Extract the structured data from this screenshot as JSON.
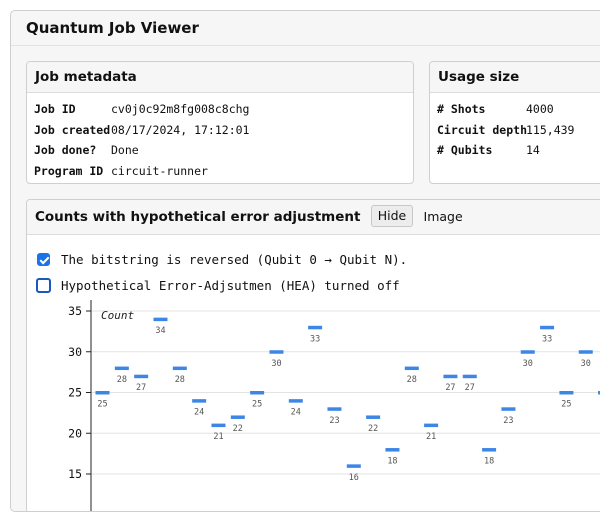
{
  "app": {
    "title": "Quantum Job Viewer"
  },
  "metadata": {
    "title": "Job metadata",
    "rows": [
      {
        "key": "Job ID",
        "value": "cv0j0c92m8fg008c8chg"
      },
      {
        "key": "Job created",
        "value": "08/17/2024, 17:12:01"
      },
      {
        "key": "Job done?",
        "value": "Done"
      },
      {
        "key": "Program ID",
        "value": "circuit-runner"
      }
    ]
  },
  "usage": {
    "title": "Usage size",
    "rows": [
      {
        "key": "# Shots",
        "value": "4000"
      },
      {
        "key": "Circuit depth",
        "value": "115,439"
      },
      {
        "key": "# Qubits",
        "value": "14"
      }
    ]
  },
  "counts": {
    "title": "Counts with hypothetical error adjustment",
    "hide_label": "Hide",
    "image_label": "Image",
    "options": [
      {
        "label": "The bitstring is reversed (Qubit 0 → Qubit N).",
        "checked": true
      },
      {
        "label": "Hypothetical Error-Adjsutmen (HEA) turned off",
        "checked": false
      }
    ]
  },
  "colors": {
    "accent": "#1a73e8",
    "bar": "#3d86e6"
  },
  "chart_data": {
    "type": "scatter",
    "ylabel": "Count",
    "yticks": [
      15,
      20,
      25,
      30,
      35
    ],
    "ylim": [
      15,
      35
    ],
    "values": [
      25,
      28,
      27,
      34,
      28,
      24,
      21,
      22,
      25,
      30,
      24,
      33,
      23,
      16,
      22,
      18,
      28,
      21,
      27,
      27,
      18,
      23,
      30,
      33,
      25,
      30,
      25
    ]
  }
}
